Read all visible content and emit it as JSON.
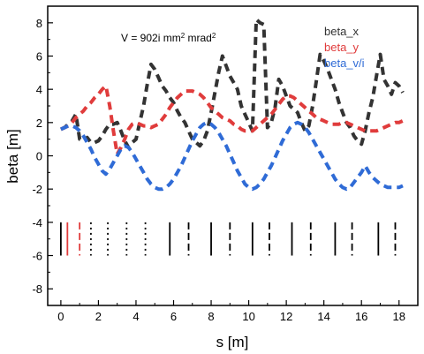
{
  "chart_data": {
    "type": "line",
    "title": "",
    "annotation": {
      "prefix": "V = 902i mm",
      "sup1": "2",
      "mid": " mrad",
      "sup2": "2"
    },
    "xlabel": "s [m]",
    "ylabel": "beta [m]",
    "xlim": [
      -0.7,
      19.0
    ],
    "ylim": [
      -9.0,
      9.0
    ],
    "xticks": [
      0,
      2,
      4,
      6,
      8,
      10,
      12,
      14,
      16,
      18
    ],
    "yticks": [
      -8,
      -6,
      -4,
      -2,
      0,
      2,
      4,
      6,
      8
    ],
    "grid": false,
    "legend_position": "top-right",
    "series": [
      {
        "name": "beta_x",
        "color": "#333333",
        "style": "dashed",
        "x": [
          0.0,
          0.2,
          0.4,
          0.6,
          0.8,
          1.0,
          1.2,
          1.4,
          1.6,
          1.8,
          2.0,
          2.2,
          2.4,
          2.6,
          2.8,
          3.0,
          3.2,
          3.4,
          3.6,
          3.8,
          4.0,
          4.2,
          4.4,
          4.6,
          4.8,
          5.0,
          5.2,
          5.4,
          5.6,
          5.8,
          6.0,
          6.2,
          6.4,
          6.6,
          6.8,
          7.0,
          7.2,
          7.4,
          7.6,
          7.8,
          8.0,
          8.2,
          8.4,
          8.6,
          8.8,
          9.0,
          9.2,
          9.4,
          9.6,
          9.8,
          10.0,
          10.2,
          10.4,
          10.6,
          10.8,
          11.0,
          11.2,
          11.4,
          11.6,
          11.8,
          12.0,
          12.2,
          12.4,
          12.6,
          12.8,
          13.0,
          13.2,
          13.4,
          13.6,
          13.8,
          14.0,
          14.2,
          14.4,
          14.6,
          14.8,
          15.0,
          15.2,
          15.4,
          15.6,
          15.8,
          16.0,
          16.2,
          16.4,
          16.6,
          16.8,
          17.0,
          17.2,
          17.4,
          17.6,
          17.8,
          18.0,
          18.2
        ],
        "y": [
          1.6,
          1.7,
          1.9,
          2.1,
          2.5,
          1.0,
          0.9,
          1.1,
          0.8,
          0.8,
          0.9,
          1.2,
          1.6,
          1.9,
          1.9,
          2.0,
          1.5,
          0.9,
          0.5,
          0.8,
          1.0,
          2.0,
          3.0,
          4.3,
          5.5,
          5.2,
          4.7,
          4.2,
          3.9,
          3.5,
          3.2,
          2.7,
          2.3,
          2.0,
          1.5,
          1.0,
          0.8,
          0.6,
          0.9,
          1.5,
          2.6,
          3.8,
          5.0,
          6.0,
          5.4,
          4.8,
          4.4,
          4.0,
          3.0,
          2.5,
          2.0,
          1.5,
          8.2,
          8.0,
          7.9,
          1.7,
          2.0,
          2.9,
          4.6,
          4.2,
          3.6,
          3.0,
          2.8,
          2.6,
          2.0,
          1.5,
          1.8,
          3.0,
          4.5,
          6.1,
          5.7,
          5.2,
          4.6,
          4.0,
          3.2,
          2.6,
          2.0,
          1.7,
          1.2,
          0.9,
          0.7,
          1.5,
          2.6,
          3.5,
          4.8,
          6.1,
          4.6,
          4.2,
          3.7,
          4.4,
          4.2,
          3.8
        ]
      },
      {
        "name": "beta_y",
        "color": "#e03c3c",
        "style": "dashed",
        "x": [
          0.0,
          0.2,
          0.4,
          0.6,
          0.8,
          1.0,
          1.2,
          1.4,
          1.6,
          1.8,
          2.0,
          2.2,
          2.4,
          2.6,
          2.8,
          3.0,
          3.2,
          3.4,
          3.6,
          3.8,
          4.0,
          4.2,
          4.4,
          4.6,
          4.8,
          5.0,
          5.2,
          5.4,
          5.6,
          5.8,
          6.0,
          6.2,
          6.4,
          6.6,
          6.8,
          7.0,
          7.2,
          7.4,
          7.6,
          7.8,
          8.0,
          8.2,
          8.4,
          8.6,
          8.8,
          9.0,
          9.2,
          9.4,
          9.6,
          9.8,
          10.0,
          10.2,
          10.4,
          10.6,
          10.8,
          11.0,
          11.2,
          11.4,
          11.6,
          11.8,
          12.0,
          12.2,
          12.4,
          12.6,
          12.8,
          13.0,
          13.2,
          13.4,
          13.6,
          13.8,
          14.0,
          14.2,
          14.4,
          14.6,
          14.8,
          15.0,
          15.2,
          15.4,
          15.6,
          15.8,
          16.0,
          16.2,
          16.4,
          16.6,
          16.8,
          17.0,
          17.2,
          17.4,
          17.6,
          17.8,
          18.0,
          18.2
        ],
        "y": [
          1.6,
          1.7,
          1.8,
          2.0,
          2.3,
          2.5,
          2.7,
          3.0,
          3.2,
          3.5,
          3.7,
          4.0,
          4.2,
          3.0,
          1.5,
          0.1,
          0.5,
          1.0,
          1.6,
          1.9,
          2.0,
          1.9,
          1.8,
          1.8,
          1.7,
          1.8,
          1.9,
          2.2,
          2.5,
          2.9,
          3.2,
          3.5,
          3.7,
          3.9,
          3.9,
          3.9,
          3.8,
          3.7,
          3.5,
          3.2,
          2.9,
          2.7,
          2.5,
          2.3,
          2.2,
          2.1,
          1.9,
          1.8,
          1.6,
          1.5,
          1.5,
          1.5,
          1.7,
          1.9,
          2.1,
          2.3,
          2.5,
          2.8,
          3.1,
          3.4,
          3.6,
          3.6,
          3.5,
          3.3,
          3.1,
          2.9,
          2.7,
          2.5,
          2.3,
          2.2,
          2.1,
          2.0,
          1.9,
          1.9,
          1.9,
          2.0,
          2.0,
          1.9,
          1.8,
          1.7,
          1.6,
          1.5,
          1.5,
          1.5,
          1.5,
          1.6,
          1.7,
          1.8,
          1.9,
          2.0,
          2.0,
          2.1
        ]
      },
      {
        "name": "beta_v/i",
        "color": "#2f6bd6",
        "style": "dashed",
        "x": [
          0.0,
          0.2,
          0.4,
          0.6,
          0.8,
          1.0,
          1.2,
          1.4,
          1.6,
          1.8,
          2.0,
          2.2,
          2.4,
          2.6,
          2.8,
          3.0,
          3.2,
          3.4,
          3.6,
          3.8,
          4.0,
          4.2,
          4.4,
          4.6,
          4.8,
          5.0,
          5.2,
          5.4,
          5.6,
          5.8,
          6.0,
          6.2,
          6.4,
          6.6,
          6.8,
          7.0,
          7.2,
          7.4,
          7.6,
          7.8,
          8.0,
          8.2,
          8.4,
          8.6,
          8.8,
          9.0,
          9.2,
          9.4,
          9.6,
          9.8,
          10.0,
          10.2,
          10.4,
          10.6,
          10.8,
          11.0,
          11.2,
          11.4,
          11.6,
          11.8,
          12.0,
          12.2,
          12.4,
          12.6,
          12.8,
          13.0,
          13.2,
          13.4,
          13.6,
          13.8,
          14.0,
          14.2,
          14.4,
          14.6,
          14.8,
          15.0,
          15.2,
          15.4,
          15.6,
          15.8,
          16.0,
          16.2,
          16.4,
          16.6,
          16.8,
          17.0,
          17.2,
          17.4,
          17.6,
          17.8,
          18.0,
          18.2
        ],
        "y": [
          1.6,
          1.7,
          1.8,
          1.8,
          1.7,
          1.5,
          1.2,
          0.8,
          0.4,
          -0.1,
          -0.5,
          -0.9,
          -1.1,
          -0.8,
          -0.4,
          0.0,
          0.4,
          0.6,
          0.5,
          0.2,
          -0.2,
          -0.6,
          -1.0,
          -1.4,
          -1.7,
          -1.9,
          -2.0,
          -2.0,
          -1.9,
          -1.7,
          -1.4,
          -1.0,
          -0.6,
          -0.1,
          0.4,
          0.9,
          1.3,
          1.7,
          1.9,
          2.0,
          1.9,
          1.7,
          1.4,
          1.0,
          0.6,
          0.1,
          -0.4,
          -0.9,
          -1.3,
          -1.7,
          -1.9,
          -2.0,
          -1.9,
          -1.7,
          -1.4,
          -1.0,
          -0.6,
          -0.1,
          0.4,
          0.9,
          1.3,
          1.7,
          1.9,
          2.0,
          1.9,
          1.7,
          1.4,
          1.0,
          0.6,
          0.2,
          -0.2,
          -0.6,
          -1.0,
          -1.4,
          -1.7,
          -1.9,
          -2.0,
          -1.9,
          -1.6,
          -1.3,
          -1.0,
          -0.6,
          -1.0,
          -1.3,
          -1.5,
          -1.7,
          -1.8,
          -1.9,
          -1.9,
          -1.9,
          -1.9,
          -1.8
        ]
      }
    ],
    "elements": [
      {
        "s": 0.0,
        "y": [
          -4,
          -6
        ],
        "color": "#000000",
        "style": "solid"
      },
      {
        "s": 0.35,
        "y": [
          -4,
          -6
        ],
        "color": "#e03c3c",
        "style": "solid"
      },
      {
        "s": 1.0,
        "y": [
          -4,
          -6
        ],
        "color": "#e03c3c",
        "style": "dashed"
      },
      {
        "s": 1.6,
        "y": [
          -4,
          -6
        ],
        "color": "#000000",
        "style": "dotted"
      },
      {
        "s": 2.5,
        "y": [
          -4,
          -6
        ],
        "color": "#000000",
        "style": "dotted"
      },
      {
        "s": 3.5,
        "y": [
          -4,
          -6
        ],
        "color": "#000000",
        "style": "dotted"
      },
      {
        "s": 4.5,
        "y": [
          -4,
          -6
        ],
        "color": "#000000",
        "style": "dotted"
      },
      {
        "s": 5.8,
        "y": [
          -4,
          -6
        ],
        "color": "#000000",
        "style": "solid"
      },
      {
        "s": 6.8,
        "y": [
          -4,
          -6
        ],
        "color": "#000000",
        "style": "dashed"
      },
      {
        "s": 8.0,
        "y": [
          -4,
          -6
        ],
        "color": "#000000",
        "style": "solid"
      },
      {
        "s": 9.0,
        "y": [
          -4,
          -6
        ],
        "color": "#000000",
        "style": "dashed"
      },
      {
        "s": 10.2,
        "y": [
          -4,
          -6
        ],
        "color": "#000000",
        "style": "solid"
      },
      {
        "s": 11.1,
        "y": [
          -4,
          -6
        ],
        "color": "#000000",
        "style": "dashed"
      },
      {
        "s": 12.3,
        "y": [
          -4,
          -6
        ],
        "color": "#000000",
        "style": "solid"
      },
      {
        "s": 13.3,
        "y": [
          -4,
          -6
        ],
        "color": "#000000",
        "style": "dashed"
      },
      {
        "s": 14.6,
        "y": [
          -4,
          -6
        ],
        "color": "#000000",
        "style": "solid"
      },
      {
        "s": 15.5,
        "y": [
          -4,
          -6
        ],
        "color": "#000000",
        "style": "dashed"
      },
      {
        "s": 16.9,
        "y": [
          -4,
          -6
        ],
        "color": "#000000",
        "style": "solid"
      },
      {
        "s": 17.8,
        "y": [
          -4,
          -6
        ],
        "color": "#000000",
        "style": "dashed"
      }
    ]
  }
}
